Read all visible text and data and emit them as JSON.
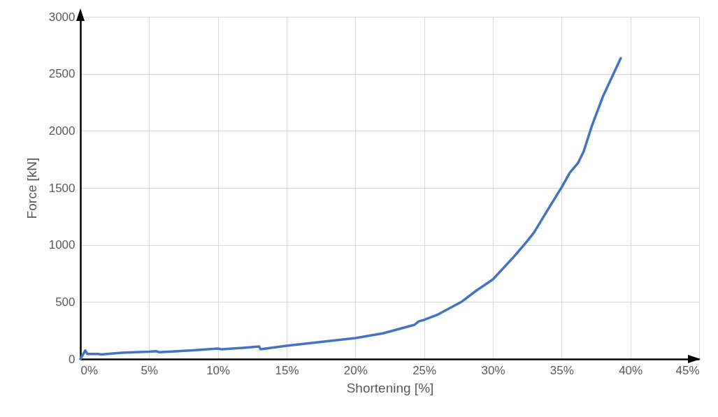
{
  "chart_data": {
    "type": "line",
    "xlabel": "Shortening [%]",
    "ylabel": "Force [kN]",
    "xlim": [
      0,
      45
    ],
    "ylim": [
      0,
      3000
    ],
    "xticks": [
      {
        "value": 0,
        "label": "0%"
      },
      {
        "value": 5,
        "label": "5%"
      },
      {
        "value": 10,
        "label": "10%"
      },
      {
        "value": 15,
        "label": "15%"
      },
      {
        "value": 20,
        "label": "20%"
      },
      {
        "value": 25,
        "label": "25%"
      },
      {
        "value": 30,
        "label": "30%"
      },
      {
        "value": 35,
        "label": "35%"
      },
      {
        "value": 40,
        "label": "40%"
      },
      {
        "value": 45,
        "label": "45%"
      }
    ],
    "yticks": [
      0,
      500,
      1000,
      1500,
      2000,
      2500,
      3000
    ],
    "grid": true,
    "marker": "none",
    "line_style": "solid",
    "series": [
      {
        "color": "#4472c4",
        "x": [
          0,
          0.36,
          0.5,
          1.3,
          1.5,
          3,
          5,
          5.5,
          5.7,
          8,
          10,
          10.3,
          12,
          13,
          13.1,
          15,
          17.5,
          20,
          22,
          24.3,
          24.6,
          25,
          26,
          27.7,
          28.8,
          30,
          31.5,
          32.5,
          33,
          34,
          35,
          35.6,
          36.2,
          36.6,
          37.2,
          38,
          39.3
        ],
        "values": [
          0,
          75,
          45,
          45,
          40,
          55,
          65,
          69,
          60,
          75,
          92,
          85,
          100,
          110,
          86,
          116,
          150,
          184,
          225,
          300,
          330,
          343,
          390,
          500,
          600,
          698,
          893,
          1034,
          1110,
          1310,
          1505,
          1634,
          1720,
          1818,
          2044,
          2300,
          2637
        ]
      }
    ]
  }
}
